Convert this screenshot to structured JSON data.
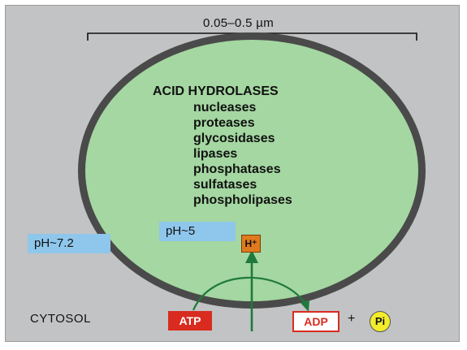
{
  "scale": {
    "label": "0.05–0.5 µm"
  },
  "lysosome": {
    "heading": "ACID HYDROLASES",
    "enzymes": [
      "nucleases",
      "proteases",
      "glycosidases",
      "lipases",
      "phosphatases",
      "sulfatases",
      "phospholipases"
    ],
    "interior_ph": "pH~5",
    "proton": "H⁺"
  },
  "cytosol": {
    "label": "CYTOSOL",
    "ph": "pH~7.2",
    "atp": "ATP",
    "adp": "ADP",
    "plus": "+",
    "pi": "Pi"
  },
  "colors": {
    "lumen": "#a4d7a1",
    "membrane": "#4a4a4a",
    "arrow": "#1f7a3c",
    "atp_box": "#d92b1f",
    "ph_box": "#8fc7ec",
    "proton_box": "#e07a1e",
    "pi_circle": "#f3ec2c"
  }
}
